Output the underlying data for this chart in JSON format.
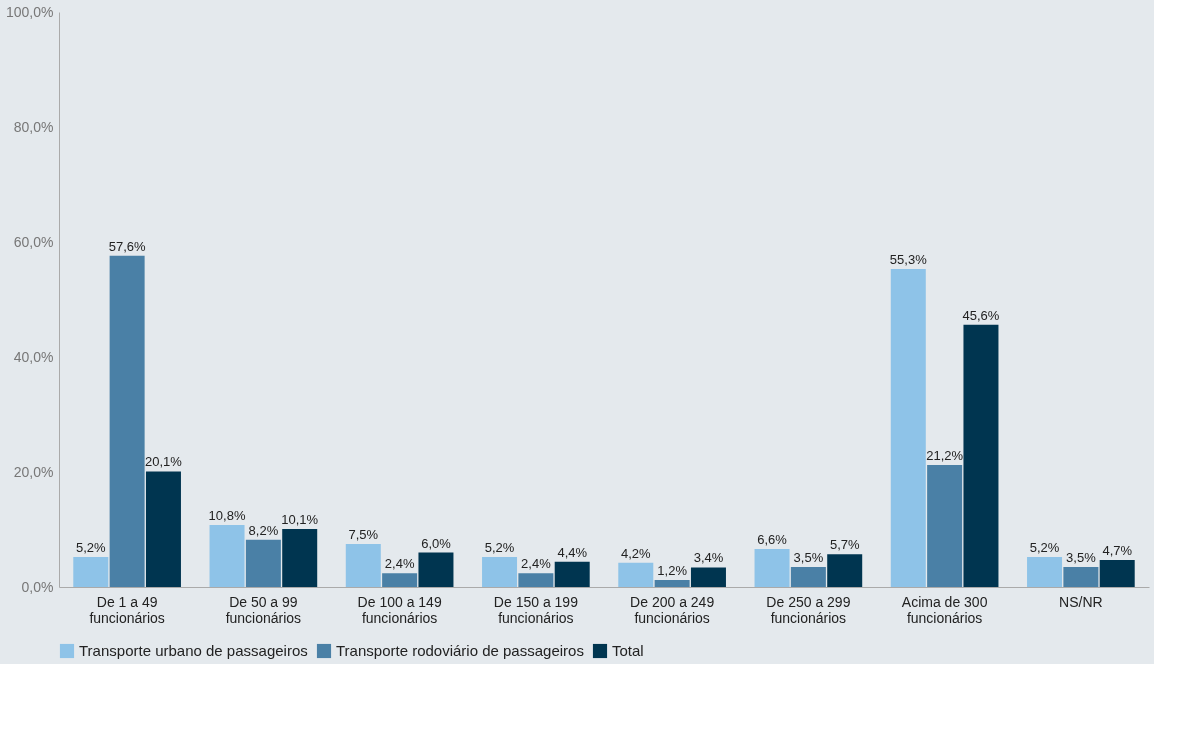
{
  "chart_data": {
    "type": "bar",
    "categories": [
      "De 1 a 49\nfuncionários",
      "De 50 a 99\nfuncionários",
      "De 100 a 149\nfuncionários",
      "De 150 a 199\nfuncionários",
      "De 200 a 249\nfuncionários",
      "De 250 a 299\nfuncionários",
      "Acima de 300\nfuncionários",
      "NS/NR"
    ],
    "series": [
      {
        "name": "Transporte urbano de passageiros",
        "color": "#8ec3e8",
        "values": [
          5.2,
          10.8,
          7.5,
          5.2,
          4.2,
          6.6,
          55.3,
          5.2
        ],
        "value_labels": [
          "5,2%",
          "10,8%",
          "7,5%",
          "5,2%",
          "4,2%",
          "6,6%",
          "55,3%",
          "5,2%"
        ]
      },
      {
        "name": "Transporte rodoviário de passageiros",
        "color": "#4a80a6",
        "values": [
          57.6,
          8.2,
          2.4,
          2.4,
          1.2,
          3.5,
          21.2,
          3.5
        ],
        "value_labels": [
          "57,6%",
          "8,2%",
          "2,4%",
          "2,4%",
          "1,2%",
          "3,5%",
          "21,2%",
          "3,5%"
        ]
      },
      {
        "name": "Total",
        "color": "#003550",
        "values": [
          20.1,
          10.1,
          6.0,
          4.4,
          3.4,
          5.7,
          45.6,
          4.7
        ],
        "value_labels": [
          "20,1%",
          "10,1%",
          "6,0%",
          "4,4%",
          "3,4%",
          "5,7%",
          "45,6%",
          "4,7%"
        ]
      }
    ],
    "ylim": [
      0,
      100
    ],
    "yticks": [
      {
        "value": 0,
        "label": "0,0%"
      },
      {
        "value": 20,
        "label": "20,0%"
      },
      {
        "value": 40,
        "label": "40,0%"
      },
      {
        "value": 60,
        "label": "60,0%"
      },
      {
        "value": 80,
        "label": "80,0%"
      },
      {
        "value": 100,
        "label": "100,0%"
      }
    ],
    "grid": false,
    "legend": "bottom"
  }
}
